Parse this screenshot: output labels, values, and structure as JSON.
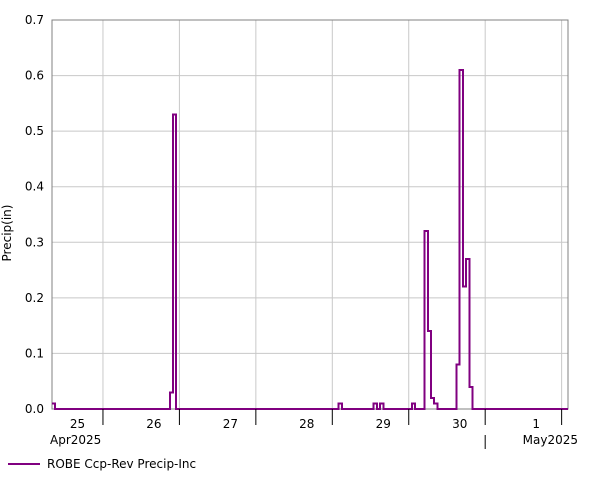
{
  "chart_data": {
    "type": "line",
    "step": true,
    "ylabel": "Precip(in)",
    "ylim": [
      0,
      0.7
    ],
    "yticks": [
      "0.0",
      "0.1",
      "0.2",
      "0.3",
      "0.4",
      "0.5",
      "0.6",
      "0.7"
    ],
    "xlim_hours": [
      0,
      162
    ],
    "day_ticks": [
      {
        "label": "25",
        "hour": 8
      },
      {
        "label": "26",
        "hour": 32
      },
      {
        "label": "27",
        "hour": 56
      },
      {
        "label": "28",
        "hour": 80
      },
      {
        "label": "29",
        "hour": 104
      },
      {
        "label": "30",
        "hour": 128
      },
      {
        "label": "1",
        "hour": 152
      }
    ],
    "month_labels": [
      {
        "label": "Apr2025",
        "anchor": "start"
      },
      {
        "label": "May2025",
        "anchor": "end"
      }
    ],
    "grid": true,
    "legend_position": "bottom-left",
    "series": [
      {
        "name": "ROBE Ccp-Rev Precip-Inc",
        "color": "#800080",
        "hours_from_apr25_00": [
          0,
          1,
          37,
          38,
          39,
          90,
          91,
          101,
          102,
          103,
          104,
          113,
          114,
          117,
          118,
          119,
          120,
          121,
          127,
          128,
          129,
          130,
          131,
          132,
          162
        ],
        "values": [
          0.01,
          0.0,
          0.03,
          0.53,
          0.0,
          0.01,
          0.0,
          0.01,
          0.0,
          0.01,
          0.0,
          0.01,
          0.0,
          0.32,
          0.14,
          0.02,
          0.01,
          0.0,
          0.08,
          0.61,
          0.22,
          0.27,
          0.04,
          0.0,
          0.0
        ]
      }
    ]
  }
}
